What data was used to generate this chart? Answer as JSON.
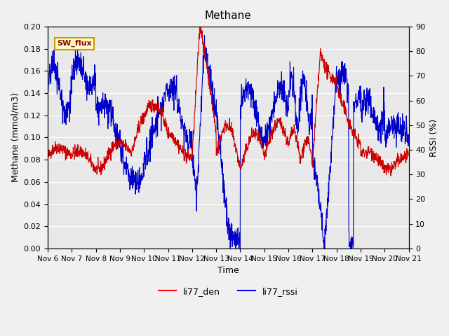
{
  "title": "Methane",
  "xlabel": "Time",
  "ylabel_left": "Methane (mmol/m3)",
  "ylabel_right": "RSSI (%)",
  "ylim_left": [
    0.0,
    0.2
  ],
  "ylim_right": [
    0,
    90
  ],
  "yticks_left": [
    0.0,
    0.02,
    0.04,
    0.06,
    0.08,
    0.1,
    0.12,
    0.14,
    0.16,
    0.18,
    0.2
  ],
  "yticks_right": [
    0,
    10,
    20,
    30,
    40,
    50,
    60,
    70,
    80,
    90
  ],
  "xtick_labels": [
    "Nov 6",
    "Nov 7",
    "Nov 8",
    "Nov 9",
    "Nov 10",
    "Nov 11",
    "Nov 12",
    "Nov 13",
    "Nov 14",
    "Nov 15",
    "Nov 16",
    "Nov 17",
    "Nov 18",
    "Nov 19",
    "Nov 20",
    "Nov 21"
  ],
  "legend_labels": [
    "li77_den",
    "li77_rssi"
  ],
  "legend_colors": [
    "red",
    "blue"
  ],
  "line_color_den": "#cc0000",
  "line_color_rssi": "#0000cc",
  "bg_color": "#e8e8e8",
  "annotation_text": "SW_flux",
  "annotation_bg": "#ffffcc",
  "annotation_border": "#cc9900"
}
